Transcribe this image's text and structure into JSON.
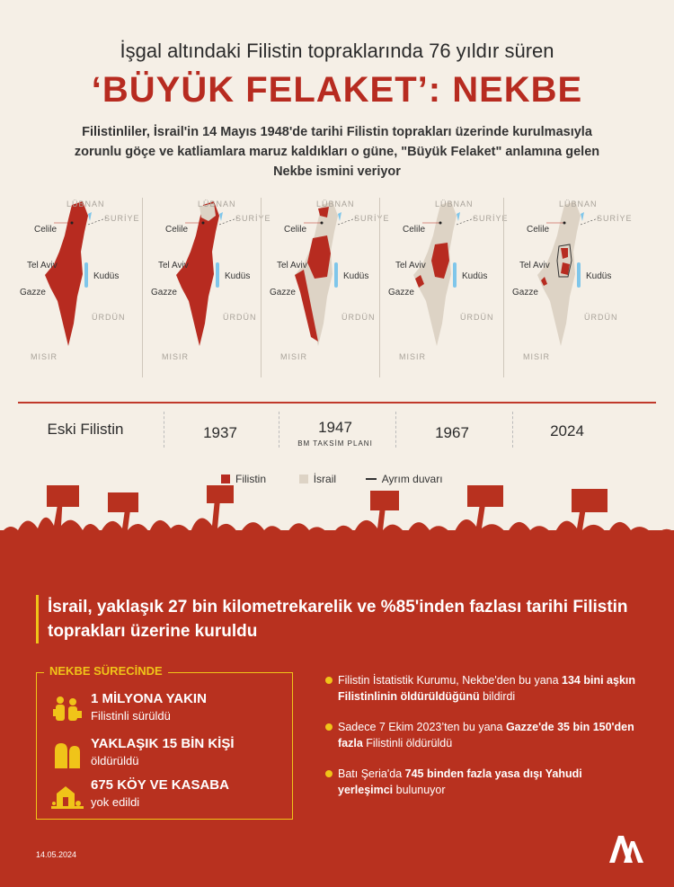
{
  "header": {
    "supertitle": "İşgal altındaki Filistin topraklarında 76 yıldır süren",
    "title": "‘BÜYÜK FELAKET’: NEKBE",
    "intro": "Filistinliler, İsrail'in 14 Mayıs 1948'de tarihi Filistin toprakları üzerinde kurulmasıyla zorunlu göçe ve katliamlara maruz kaldıkları o güne, \"Büyük Felaket\" anlamına gelen Nekbe ismini veriyor"
  },
  "map_labels": {
    "lebanon": "LÜBNAN",
    "syria": "SURİYE",
    "jordan": "ÜRDÜN",
    "egypt": "MISIR",
    "celile": "Celile",
    "telaviv": "Tel Aviv",
    "gazze": "Gazze",
    "kudus": "Kudüs"
  },
  "timeline": [
    {
      "label": "Eski Filistin",
      "sub": ""
    },
    {
      "label": "1937",
      "sub": ""
    },
    {
      "label": "1947",
      "sub": "BM TAKSİM PLANI"
    },
    {
      "label": "1967",
      "sub": ""
    },
    {
      "label": "2024",
      "sub": ""
    }
  ],
  "legend": {
    "palestine": "Filistin",
    "israel": "İsrail",
    "wall": "Ayrım duvarı"
  },
  "colors": {
    "palestine": "#b72b20",
    "israel": "#ddd3c5",
    "accent": "#f0c419",
    "panel": "#b8311f",
    "water": "#7fc6ea"
  },
  "headline": "İsrail, yaklaşık 27 bin kilometrekarelik ve %85'inden fazlası tarihi Filistin toprakları üzerine kuruldu",
  "nekbe_box": {
    "title": "NEKBE SÜRECİNDE",
    "stats": [
      {
        "icon": "refugees-icon",
        "main": "1 MİLYONA YAKIN",
        "sub": "Filistinli sürüldü"
      },
      {
        "icon": "graves-icon",
        "main": "YAKLAŞIK 15 BİN KİŞİ",
        "sub": "öldürüldü"
      },
      {
        "icon": "destroyed-village-icon",
        "main": "675 KÖY VE KASABA",
        "sub": "yok edildi"
      }
    ]
  },
  "bullets": [
    {
      "pre": "Filistin İstatistik Kurumu, Nekbe'den bu yana ",
      "bold": "134 bini aşkın Filistinlinin öldürüldüğünü",
      "post": " bildirdi"
    },
    {
      "pre": "Sadece 7 Ekim 2023’ten bu yana ",
      "bold": "Gazze'de 35 bin 150'den fazla",
      "post": " Filistinli öldürüldü"
    },
    {
      "pre": "Batı Şeria'da ",
      "bold": "745 binden fazla yasa dışı Yahudi yerleşimci",
      "post": " bulunuyor"
    }
  ],
  "footer": {
    "date": "14.05.2024",
    "logo": "AA"
  }
}
